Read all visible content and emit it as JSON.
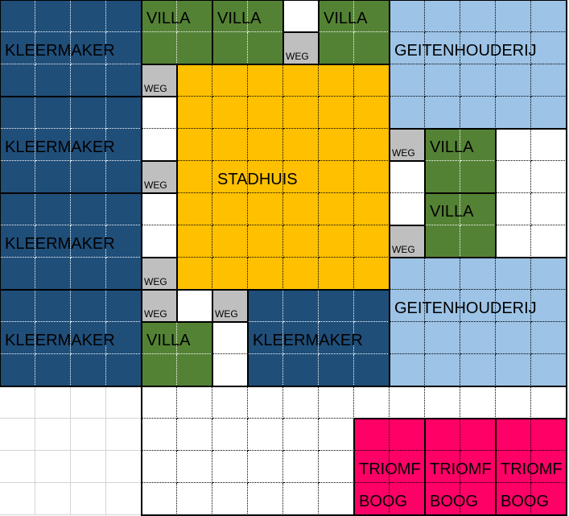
{
  "colors": {
    "kleermaker": "#1F4E79",
    "villa": "#548235",
    "stadhuis": "#FFC000",
    "geitenhouderij": "#9DC3E6",
    "weg": "#BFBFBF",
    "triomfboog": "#FF0066",
    "empty": "#FFFFFF"
  },
  "labels": {
    "kleermaker": "KLEERMAKER",
    "villa": "VILLA",
    "stadhuis": "STADHUIS",
    "geitenhouderij": "GEITENHOUDERIJ",
    "weg": "WEG",
    "triomf": "TRIOMF",
    "boog": "BOOG"
  }
}
